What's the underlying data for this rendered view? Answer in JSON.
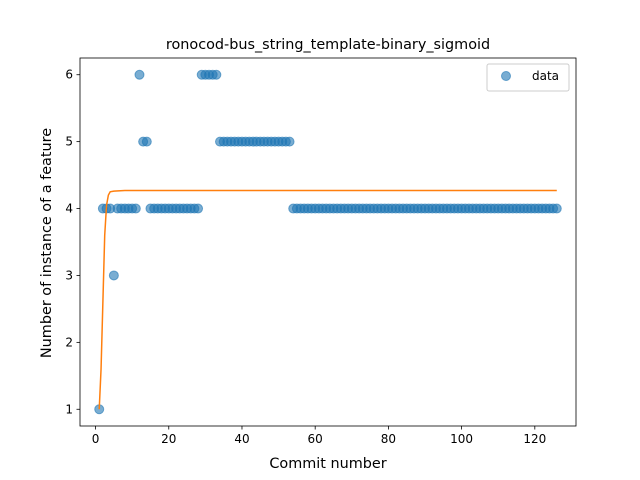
{
  "chart_data": {
    "type": "scatter",
    "title": "ronocod-bus_string_template-binary_sigmoid",
    "xlabel": "Commit number",
    "ylabel": "Number of instance of a feature",
    "xlim": [
      -4.25,
      131.25
    ],
    "ylim": [
      0.75,
      6.25
    ],
    "xticks": [
      0,
      20,
      40,
      60,
      80,
      100,
      120
    ],
    "yticks": [
      1,
      2,
      3,
      4,
      5,
      6
    ],
    "grid": false,
    "legend": {
      "position": "top-right",
      "entries": [
        "data"
      ]
    },
    "colors": {
      "data": "#1f77b4",
      "fit": "#ff7f0e"
    },
    "series": [
      {
        "name": "data",
        "kind": "scatter",
        "points": [
          [
            1,
            1
          ],
          [
            2,
            4
          ],
          [
            3,
            4
          ],
          [
            4,
            4
          ],
          [
            5,
            3
          ],
          [
            6,
            4
          ],
          [
            7,
            4
          ],
          [
            8,
            4
          ],
          [
            9,
            4
          ],
          [
            10,
            4
          ],
          [
            11,
            4
          ],
          [
            12,
            6
          ],
          [
            13,
            5
          ],
          [
            14,
            5
          ],
          [
            15,
            4
          ],
          [
            16,
            4
          ],
          [
            17,
            4
          ],
          [
            18,
            4
          ],
          [
            19,
            4
          ],
          [
            20,
            4
          ],
          [
            21,
            4
          ],
          [
            22,
            4
          ],
          [
            23,
            4
          ],
          [
            24,
            4
          ],
          [
            25,
            4
          ],
          [
            26,
            4
          ],
          [
            27,
            4
          ],
          [
            28,
            4
          ],
          [
            29,
            6
          ],
          [
            30,
            6
          ],
          [
            31,
            6
          ],
          [
            32,
            6
          ],
          [
            33,
            6
          ],
          [
            34,
            5
          ],
          [
            35,
            5
          ],
          [
            36,
            5
          ],
          [
            37,
            5
          ],
          [
            38,
            5
          ],
          [
            39,
            5
          ],
          [
            40,
            5
          ],
          [
            41,
            5
          ],
          [
            42,
            5
          ],
          [
            43,
            5
          ],
          [
            44,
            5
          ],
          [
            45,
            5
          ],
          [
            46,
            5
          ],
          [
            47,
            5
          ],
          [
            48,
            5
          ],
          [
            49,
            5
          ],
          [
            50,
            5
          ],
          [
            51,
            5
          ],
          [
            52,
            5
          ],
          [
            53,
            5
          ],
          [
            54,
            4
          ],
          [
            55,
            4
          ],
          [
            56,
            4
          ],
          [
            57,
            4
          ],
          [
            58,
            4
          ],
          [
            59,
            4
          ],
          [
            60,
            4
          ],
          [
            61,
            4
          ],
          [
            62,
            4
          ],
          [
            63,
            4
          ],
          [
            64,
            4
          ],
          [
            65,
            4
          ],
          [
            66,
            4
          ],
          [
            67,
            4
          ],
          [
            68,
            4
          ],
          [
            69,
            4
          ],
          [
            70,
            4
          ],
          [
            71,
            4
          ],
          [
            72,
            4
          ],
          [
            73,
            4
          ],
          [
            74,
            4
          ],
          [
            75,
            4
          ],
          [
            76,
            4
          ],
          [
            77,
            4
          ],
          [
            78,
            4
          ],
          [
            79,
            4
          ],
          [
            80,
            4
          ],
          [
            81,
            4
          ],
          [
            82,
            4
          ],
          [
            83,
            4
          ],
          [
            84,
            4
          ],
          [
            85,
            4
          ],
          [
            86,
            4
          ],
          [
            87,
            4
          ],
          [
            88,
            4
          ],
          [
            89,
            4
          ],
          [
            90,
            4
          ],
          [
            91,
            4
          ],
          [
            92,
            4
          ],
          [
            93,
            4
          ],
          [
            94,
            4
          ],
          [
            95,
            4
          ],
          [
            96,
            4
          ],
          [
            97,
            4
          ],
          [
            98,
            4
          ],
          [
            99,
            4
          ],
          [
            100,
            4
          ],
          [
            101,
            4
          ],
          [
            102,
            4
          ],
          [
            103,
            4
          ],
          [
            104,
            4
          ],
          [
            105,
            4
          ],
          [
            106,
            4
          ],
          [
            107,
            4
          ],
          [
            108,
            4
          ],
          [
            109,
            4
          ],
          [
            110,
            4
          ],
          [
            111,
            4
          ],
          [
            112,
            4
          ],
          [
            113,
            4
          ],
          [
            114,
            4
          ],
          [
            115,
            4
          ],
          [
            116,
            4
          ],
          [
            117,
            4
          ],
          [
            118,
            4
          ],
          [
            119,
            4
          ],
          [
            120,
            4
          ],
          [
            121,
            4
          ],
          [
            122,
            4
          ],
          [
            123,
            4
          ],
          [
            124,
            4
          ],
          [
            125,
            4
          ],
          [
            126,
            4
          ]
        ]
      },
      {
        "kind": "line",
        "points": [
          [
            1,
            1.0
          ],
          [
            1.5,
            1.6
          ],
          [
            2,
            2.6
          ],
          [
            2.5,
            3.6
          ],
          [
            3,
            4.05
          ],
          [
            3.5,
            4.2
          ],
          [
            4,
            4.25
          ],
          [
            5,
            4.26
          ],
          [
            8,
            4.27
          ],
          [
            20,
            4.27
          ],
          [
            60,
            4.27
          ],
          [
            100,
            4.27
          ],
          [
            126,
            4.27
          ]
        ]
      }
    ]
  }
}
